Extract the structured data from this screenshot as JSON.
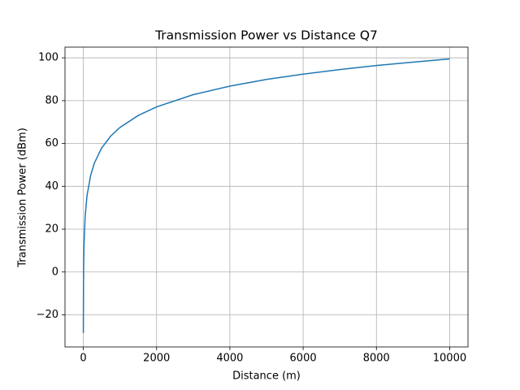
{
  "chart_data": {
    "type": "line",
    "title": "Transmission Power vs Distance Q7",
    "x_label": "Distance (m)",
    "y_label": "Transmission Power (dBm)",
    "x": [
      1,
      2,
      5,
      10,
      20,
      50,
      100,
      200,
      300,
      500,
      750,
      1000,
      1500,
      2000,
      3000,
      4000,
      5000,
      6000,
      7000,
      8000,
      9000,
      10000
    ],
    "series": [
      {
        "color": "#1f77b4",
        "values": [
          -28.5,
          -18.9,
          -6.1,
          3.5,
          13.1,
          25.9,
          35.5,
          45.1,
          50.8,
          57.9,
          63.5,
          67.5,
          73.1,
          77.1,
          82.8,
          86.8,
          89.9,
          92.4,
          94.5,
          96.4,
          98.0,
          99.5
        ]
      }
    ],
    "xlim": [
      -500,
      10500
    ],
    "ylim": [
      -35,
      105
    ],
    "xticks": [
      0,
      2000,
      4000,
      6000,
      8000,
      10000
    ],
    "yticks": [
      {
        "value": -20,
        "label": "−20"
      },
      0,
      20,
      40,
      60,
      80,
      100
    ],
    "grid": true
  }
}
